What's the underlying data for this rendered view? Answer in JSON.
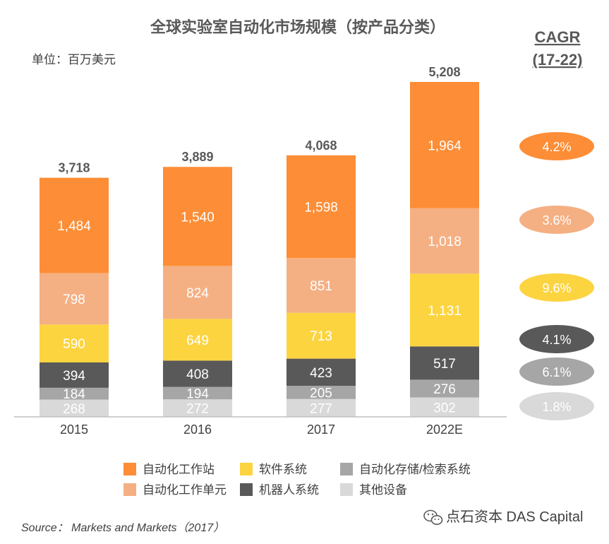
{
  "chart_data": {
    "type": "bar",
    "stacked": true,
    "title": "全球实验室自动化市场规模（按产品分类）",
    "unit_label": "单位：百万美元",
    "categories": [
      "2015",
      "2016",
      "2017",
      "2022E"
    ],
    "totals": [
      "3,718",
      "3,889",
      "4,068",
      "5,208"
    ],
    "series": [
      {
        "name": "其他设备",
        "color": "#d9d9d9",
        "label_color": "#ffffff",
        "values": [
          268,
          272,
          277,
          302
        ],
        "cagr": "1.8%"
      },
      {
        "name": "自动化存储/检索系统",
        "color": "#a6a6a6",
        "label_color": "#ffffff",
        "values": [
          184,
          194,
          205,
          276
        ],
        "cagr": "6.1%"
      },
      {
        "name": "机器人系统",
        "color": "#595959",
        "label_color": "#ffffff",
        "values": [
          394,
          408,
          423,
          517
        ],
        "cagr": "4.1%"
      },
      {
        "name": "软件系统",
        "color": "#fcd440",
        "label_color": "#ffffff",
        "values": [
          590,
          649,
          713,
          1131
        ],
        "cagr": "9.6%"
      },
      {
        "name": "自动化工作单元",
        "color": "#f4b083",
        "label_color": "#ffffff",
        "values": [
          798,
          824,
          851,
          1018
        ],
        "cagr": "3.6%"
      },
      {
        "name": "自动化工作站",
        "color": "#fd8d36",
        "label_color": "#ffffff",
        "values": [
          1484,
          1540,
          1598,
          1964
        ],
        "cagr": "4.2%"
      }
    ],
    "cagr_header": "CAGR",
    "cagr_period": "(17-22)",
    "legend_order": [
      "自动化工作站",
      "软件系统",
      "自动化存储/检索系统",
      "自动化工作单元",
      "机器人系统",
      "其他设备"
    ]
  },
  "source": "Source： Markets and Markets（2017）",
  "watermark": "点石资本 DAS Capital"
}
